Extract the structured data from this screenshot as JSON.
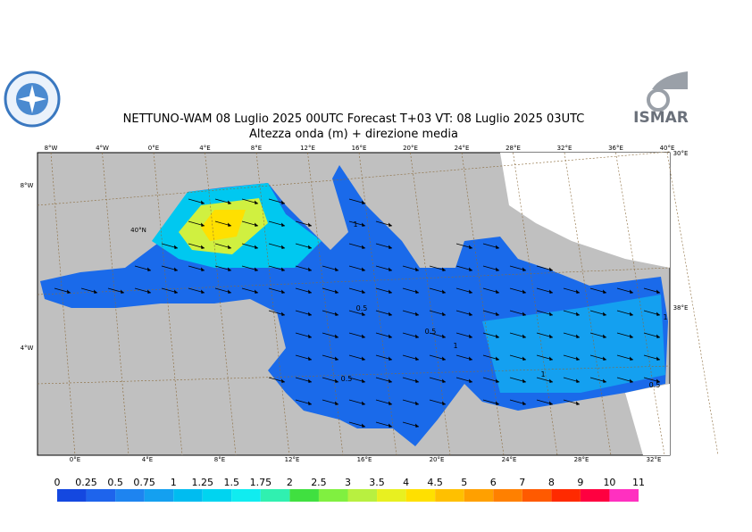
{
  "header": {
    "title": "NETTUNO-WAM  08  Luglio   2025 00UTC Forecast T+03 VT: 08  Luglio   2025 03UTC",
    "subtitle": "Altezza onda (m) + direzione media",
    "logo_right": "ISMAR"
  },
  "map": {
    "top_labels": [
      "8°W",
      "4°W",
      "0°E",
      "4°E",
      "8°E",
      "12°E",
      "16°E",
      "20°E",
      "24°E",
      "28°E",
      "32°E",
      "36°E",
      "40°E"
    ],
    "bottom_labels": [
      "0°E",
      "4°E",
      "8°E",
      "12°E",
      "16°E",
      "20°E",
      "24°E",
      "28°E",
      "32°E"
    ],
    "left_labels": [
      "8°W",
      "4°W"
    ],
    "right_labels": [
      "30°E",
      "38°E"
    ],
    "inner_labels": [
      "40°N"
    ],
    "contour_labels": [
      "0.5",
      "0.5",
      "0.5",
      "1",
      "1",
      "1",
      "1",
      "0.5"
    ]
  },
  "legend": {
    "levels": [
      0,
      0.25,
      0.5,
      0.75,
      1,
      1.25,
      1.5,
      1.75,
      2,
      2.5,
      3,
      3.5,
      4,
      4.5,
      5,
      6,
      7,
      8,
      9,
      10,
      11
    ],
    "colors": [
      "#1448e0",
      "#1e64ec",
      "#1e84f0",
      "#14a0f0",
      "#00bcf0",
      "#00d4f0",
      "#10ecf0",
      "#30f0b0",
      "#40e040",
      "#80f040",
      "#b8f040",
      "#e8f020",
      "#ffe000",
      "#ffc000",
      "#ffa000",
      "#ff8000",
      "#ff5a00",
      "#ff2a00",
      "#ff0040",
      "#ff30c0"
    ]
  }
}
